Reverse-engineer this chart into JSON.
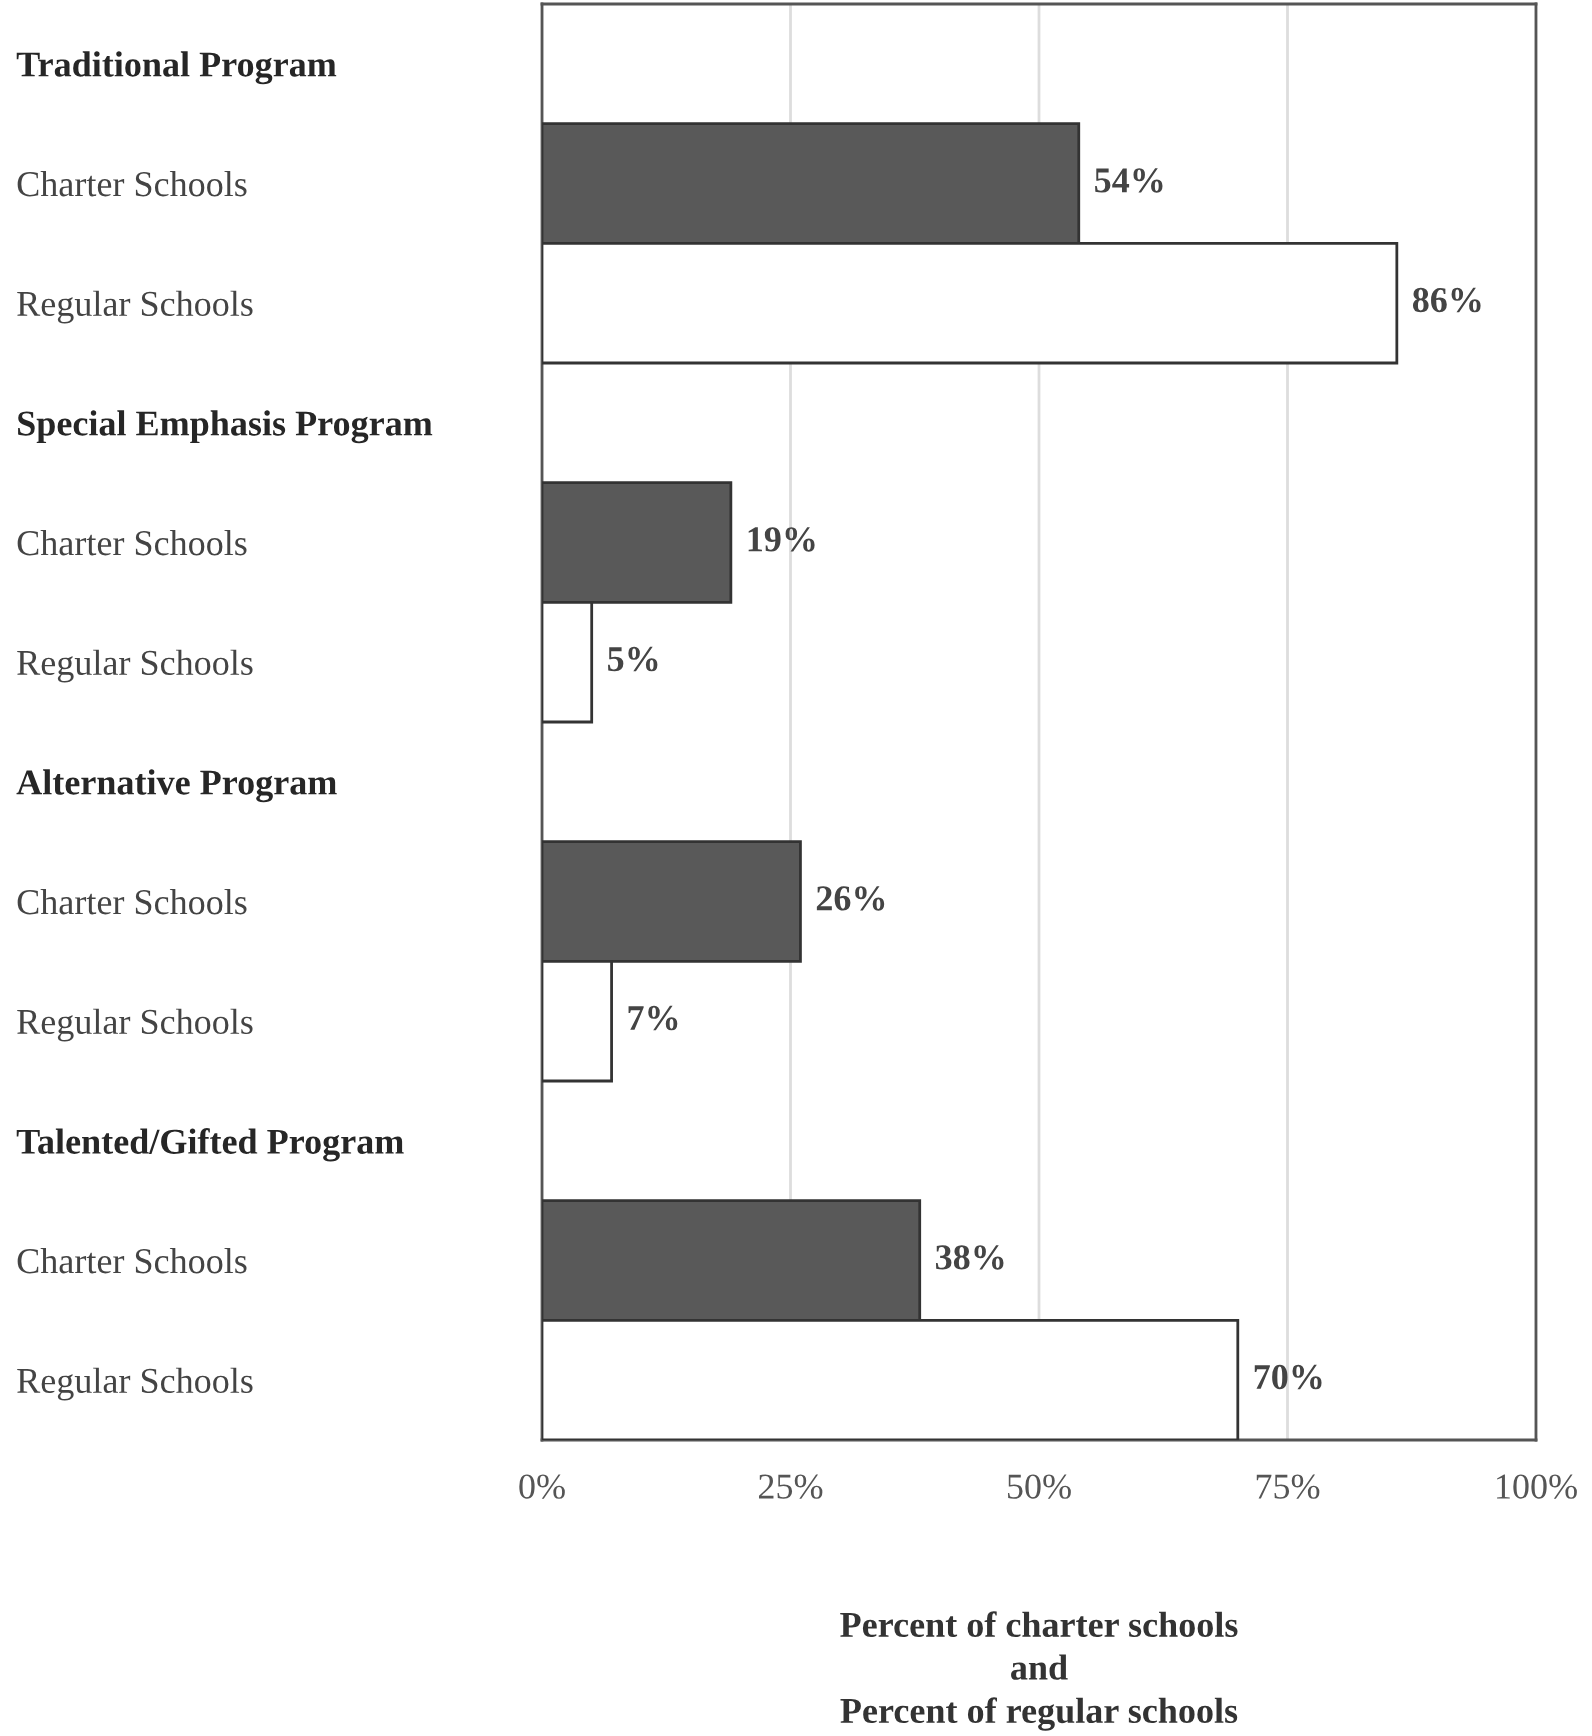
{
  "chart_data": {
    "type": "bar",
    "orientation": "horizontal",
    "categories": [
      "Traditional Program",
      "Charter Schools",
      "Regular Schools",
      "Special Emphasis Program",
      "Charter Schools",
      "Regular Schools",
      "Alternative Program",
      "Charter Schools",
      "Regular Schools",
      "Talented/Gifted Program",
      "Charter Schools",
      "Regular Schools"
    ],
    "values": [
      null,
      54,
      86,
      null,
      19,
      5,
      null,
      26,
      7,
      null,
      38,
      70
    ],
    "colors": [
      "#ffffff",
      "#595959",
      "#ffffff",
      "#ffffff",
      "#595959",
      "#ffffff",
      "#ffffff",
      "#595959",
      "#ffffff",
      "#ffffff",
      "#595959",
      "#ffffff"
    ],
    "value_labels": [
      null,
      "54%",
      "86%",
      null,
      "19%",
      "5%",
      null,
      "26%",
      "7%",
      null,
      "38%",
      "70%"
    ],
    "xlim": [
      0,
      100
    ],
    "xticks": [
      {
        "value": 0,
        "label": "0%"
      },
      {
        "value": 25,
        "label": "25%"
      },
      {
        "value": 50,
        "label": "50%"
      },
      {
        "value": 75,
        "label": "75%"
      },
      {
        "value": 100,
        "label": "100%"
      }
    ],
    "xlabel": "Percent of charter schools\nand\nPercent of regular schools",
    "grid": "x",
    "legend": false
  }
}
